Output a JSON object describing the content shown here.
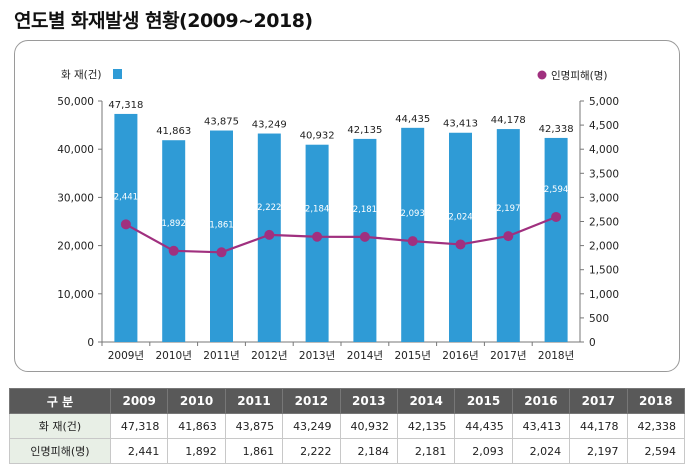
{
  "page_title": "연도별 화재발생 현황(2009~2018)",
  "colors": {
    "bar": "#2f9bd6",
    "line": "#a0307f",
    "marker": "#a0307f",
    "header_bg": "#595959",
    "rowhead_bg": "#e8efe6"
  },
  "chart_data": {
    "type": "bar",
    "categories": [
      "2009년",
      "2010년",
      "2011년",
      "2012년",
      "2013년",
      "2014년",
      "2015년",
      "2016년",
      "2017년",
      "2018년"
    ],
    "series": [
      {
        "name": "화 재(건)",
        "type": "bar",
        "axis": "left",
        "values": [
          47318,
          41863,
          43875,
          43249,
          40932,
          42135,
          44435,
          43413,
          44178,
          42338
        ],
        "labels": [
          "47,318",
          "41,863",
          "43,875",
          "43,249",
          "40,932",
          "42,135",
          "44,435",
          "43,413",
          "44,178",
          "42,338"
        ]
      },
      {
        "name": "인명피해(명)",
        "type": "line",
        "axis": "right",
        "values": [
          2441,
          1892,
          1861,
          2222,
          2184,
          2181,
          2093,
          2024,
          2197,
          2594
        ],
        "labels": [
          "2,441",
          "1,892",
          "1,861",
          "2,222",
          "2,184",
          "2,181",
          "2,093",
          "2,024",
          "2,197",
          "2,594"
        ]
      }
    ],
    "left_axis": {
      "range": [
        0,
        50000
      ],
      "ticks": [
        "0",
        "10,000",
        "20,000",
        "30,000",
        "40,000",
        "50,000"
      ]
    },
    "right_axis": {
      "range": [
        0,
        5000
      ],
      "ticks": [
        "0",
        "500",
        "1,000",
        "1,500",
        "2,000",
        "2,500",
        "3,000",
        "3,500",
        "4,000",
        "4,500",
        "5,000"
      ]
    },
    "legend_placement": "top",
    "grid": false
  },
  "table": {
    "headers": [
      "구 분",
      "2009",
      "2010",
      "2011",
      "2012",
      "2013",
      "2014",
      "2015",
      "2016",
      "2017",
      "2018"
    ],
    "rows": [
      [
        "화 재(건)",
        "47,318",
        "41,863",
        "43,875",
        "43,249",
        "40,932",
        "42,135",
        "44,435",
        "43,413",
        "44,178",
        "42,338"
      ],
      [
        "인명피해(명)",
        "2,441",
        "1,892",
        "1,861",
        "2,222",
        "2,184",
        "2,181",
        "2,093",
        "2,024",
        "2,197",
        "2,594"
      ]
    ]
  }
}
